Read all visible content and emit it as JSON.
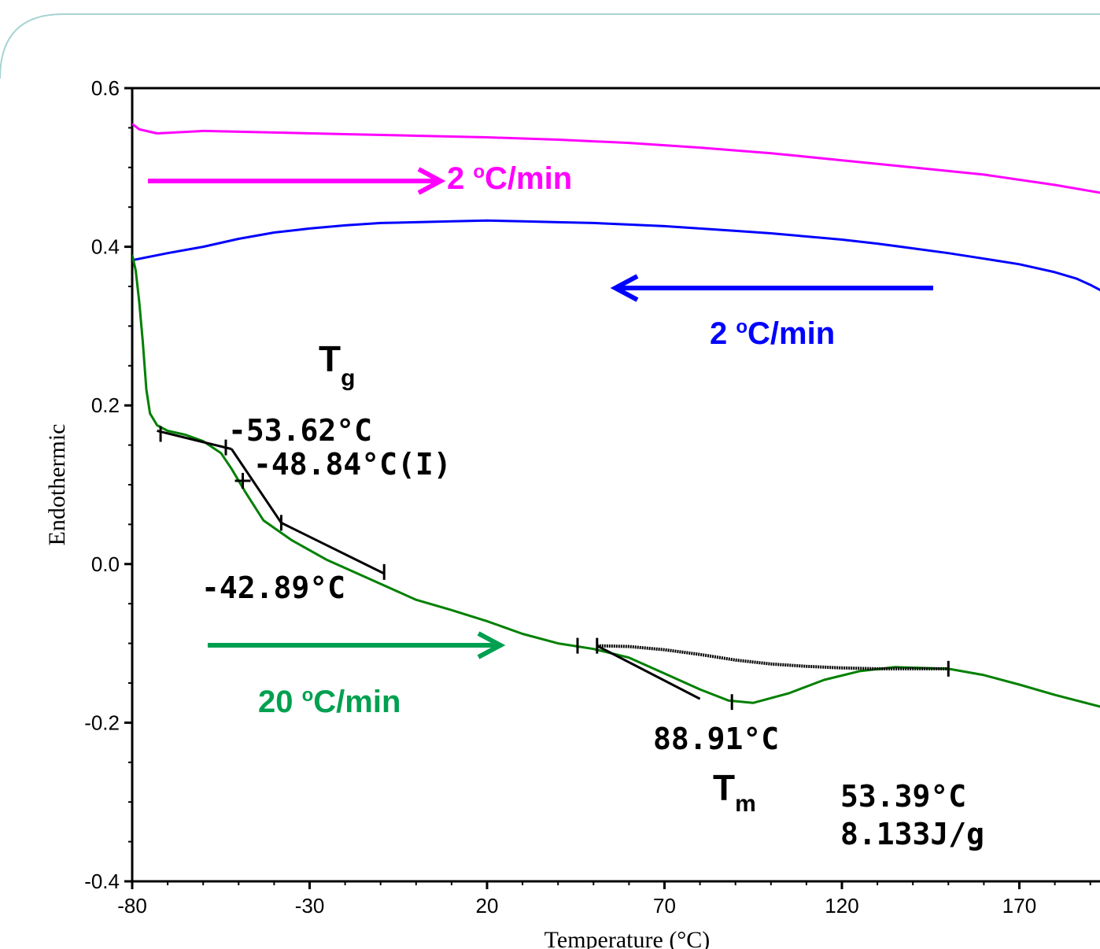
{
  "chart_data": {
    "type": "line",
    "xlabel": "Temperature (°C)",
    "ylabel": "Endothermic",
    "xlim": [
      -80,
      193
    ],
    "ylim": [
      -0.4,
      0.6
    ],
    "x_ticks": [
      "-80",
      "-30",
      "20",
      "70",
      "120",
      "170"
    ],
    "y_ticks": [
      "0.6",
      "0.4",
      "0.2",
      "0.0",
      "-0.2",
      "-0.4"
    ],
    "series": [
      {
        "color": "#ff00ff",
        "label_text": "2 ",
        "label_sup": "o",
        "label_unit": "C/min",
        "arrow": "right",
        "x": [
          -80,
          -78,
          -73,
          -60,
          -40,
          -20,
          0,
          20,
          40,
          60,
          80,
          100,
          120,
          140,
          160,
          180,
          193
        ],
        "y": [
          0.555,
          0.548,
          0.543,
          0.546,
          0.544,
          0.542,
          0.54,
          0.538,
          0.535,
          0.531,
          0.525,
          0.518,
          0.509,
          0.5,
          0.491,
          0.478,
          0.468
        ]
      },
      {
        "color": "#0000ff",
        "label_text": "2 ",
        "label_sup": "o",
        "label_unit": "C/min",
        "arrow": "left",
        "x": [
          -80,
          -70,
          -60,
          -50,
          -40,
          -30,
          -20,
          -10,
          0,
          10,
          20,
          30,
          40,
          50,
          60,
          70,
          80,
          90,
          100,
          110,
          120,
          130,
          140,
          150,
          160,
          170,
          180,
          186,
          190,
          193
        ],
        "y": [
          0.383,
          0.392,
          0.4,
          0.41,
          0.418,
          0.423,
          0.427,
          0.43,
          0.431,
          0.432,
          0.433,
          0.432,
          0.431,
          0.43,
          0.428,
          0.426,
          0.423,
          0.42,
          0.417,
          0.413,
          0.409,
          0.404,
          0.398,
          0.392,
          0.385,
          0.378,
          0.368,
          0.36,
          0.352,
          0.345
        ]
      },
      {
        "color": "#008000",
        "label_text": "20 ",
        "label_sup": "o",
        "label_unit": "C/min",
        "arrow": "right",
        "x": [
          -80,
          -79,
          -78,
          -77,
          -76,
          -75,
          -73,
          -70,
          -65,
          -60,
          -55,
          -52,
          -48,
          -43,
          -35,
          -25,
          -15,
          -5,
          0,
          10,
          20,
          30,
          40,
          50,
          60,
          70,
          80,
          88,
          95,
          105,
          115,
          125,
          135,
          150,
          160,
          170,
          180,
          193
        ],
        "y": [
          0.39,
          0.37,
          0.33,
          0.28,
          0.22,
          0.19,
          0.175,
          0.168,
          0.163,
          0.155,
          0.14,
          0.12,
          0.09,
          0.055,
          0.03,
          0.005,
          -0.015,
          -0.035,
          -0.045,
          -0.058,
          -0.072,
          -0.088,
          -0.1,
          -0.107,
          -0.118,
          -0.138,
          -0.158,
          -0.172,
          -0.175,
          -0.163,
          -0.146,
          -0.135,
          -0.13,
          -0.132,
          -0.14,
          -0.152,
          -0.165,
          -0.18
        ]
      }
    ],
    "baseline": {
      "color": "#000000",
      "x": [
        51,
        60,
        70,
        80,
        90,
        100,
        110,
        120,
        130,
        140,
        150
      ],
      "y": [
        -0.103,
        -0.104,
        -0.108,
        -0.114,
        -0.121,
        -0.126,
        -0.129,
        -0.131,
        -0.132,
        -0.132,
        -0.132
      ]
    },
    "annotations": {
      "tg_symbol": "T",
      "tg_sub": "g",
      "tg_onset": "-53.62°C",
      "tg_mid": "-48.84°C(I)",
      "tg_end": "-42.89°C",
      "tm_peak": "88.91°C",
      "tm_symbol": "T",
      "tm_sub": "m",
      "tm_onset": "53.39°C",
      "enthalpy": "8.133J/g"
    }
  }
}
